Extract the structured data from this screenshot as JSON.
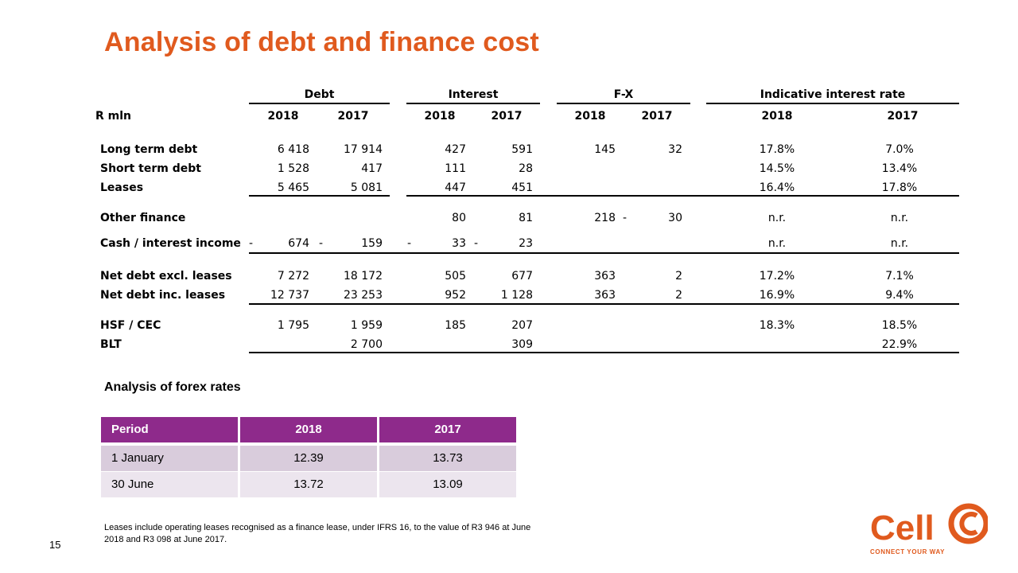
{
  "title": "Analysis of debt and finance cost",
  "debt_table": {
    "row_header": "R mln",
    "groups": [
      "Debt",
      "Interest",
      "F-X",
      "Indicative interest rate"
    ],
    "years": [
      "2018",
      "2017",
      "2018",
      "2017",
      "2018",
      "2017",
      "2018",
      "2017"
    ],
    "rows": [
      {
        "label": "Long term debt",
        "cells": [
          "6 418",
          "17 914",
          "427",
          "591",
          "145",
          "32",
          "17.8%",
          "7.0%"
        ]
      },
      {
        "label": "Short term debt",
        "cells": [
          "1 528",
          "417",
          "111",
          "28",
          "",
          "",
          "14.5%",
          "13.4%"
        ]
      },
      {
        "label": "Leases",
        "cells": [
          "5 465",
          "5 081",
          "447",
          "451",
          "",
          "",
          "16.4%",
          "17.8%"
        ]
      },
      {
        "label": "Other finance",
        "cells": [
          "",
          "",
          "80",
          "81",
          "218",
          "30",
          "n.r.",
          "n.r."
        ]
      },
      {
        "label": "Cash / interest income",
        "cells": [
          "674",
          "159",
          "33",
          "23",
          "",
          "",
          "n.r.",
          "n.r."
        ]
      },
      {
        "label": "Net debt excl. leases",
        "cells": [
          "7 272",
          "18 172",
          "505",
          "677",
          "363",
          "2",
          "17.2%",
          "7.1%"
        ]
      },
      {
        "label": "Net debt inc. leases",
        "cells": [
          "12 737",
          "23 253",
          "952",
          "1 128",
          "363",
          "2",
          "16.9%",
          "9.4%"
        ]
      },
      {
        "label": "HSF / CEC",
        "cells": [
          "1 795",
          "1 959",
          "185",
          "207",
          "",
          "",
          "18.3%",
          "18.5%"
        ]
      },
      {
        "label": "BLT",
        "cells": [
          "",
          "2 700",
          "",
          "309",
          "",
          "",
          "",
          "22.9%"
        ]
      }
    ],
    "negative_sign": "-"
  },
  "forex": {
    "title": "Analysis of forex rates",
    "headers": [
      "Period",
      "2018",
      "2017"
    ],
    "rows": [
      [
        "1 January",
        "12.39",
        "13.73"
      ],
      [
        "30 June",
        "13.72",
        "13.09"
      ]
    ]
  },
  "footnote": "Leases include operating leases recognised as a finance lease, under IFRS 16, to the value of R3 946 at June 2018 and R3 098 at June 2017.",
  "page_number": "15",
  "logo": {
    "text": "Cell",
    "tagline": "CONNECT YOUR WAY",
    "color": "#e05a1e",
    "icon": "c-circle-logo-icon"
  },
  "colors": {
    "title": "#e05a1e",
    "table_header": "#8e2a8b",
    "row_dark": "#d9ccdc",
    "row_light": "#ece5ee"
  }
}
